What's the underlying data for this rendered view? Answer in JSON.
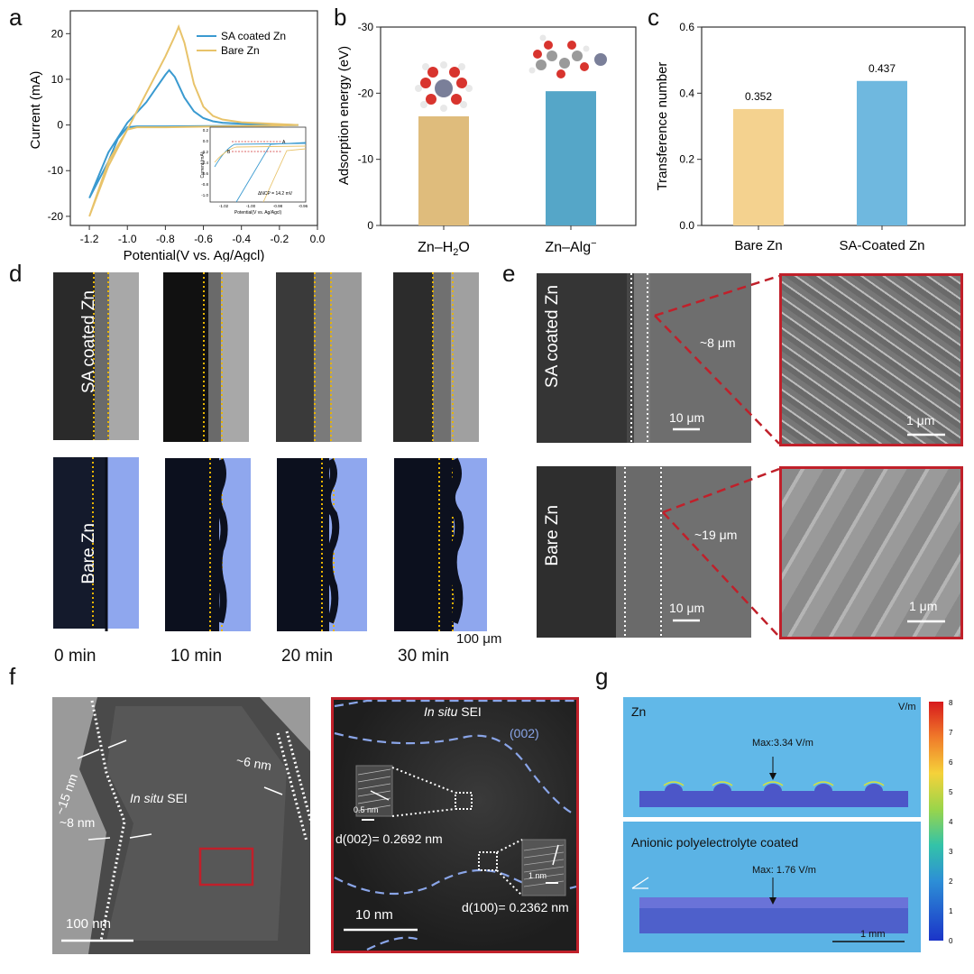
{
  "panels": {
    "a": "a",
    "b": "b",
    "c": "c",
    "d": "d",
    "e": "e",
    "f": "f",
    "g": "g"
  },
  "chart_data": [
    {
      "type": "line",
      "panel": "a",
      "xlabel": "Potential(V vs. Ag/Agcl)",
      "ylabel": "Current (mA)",
      "xlim": [
        -1.3,
        0.0
      ],
      "ylim": [
        -22,
        25
      ],
      "x_ticks": [
        "-1.2",
        "-1.0",
        "-0.8",
        "-0.6",
        "-0.4",
        "-0.2",
        "0.0"
      ],
      "y_ticks": [
        "20",
        "10",
        "0",
        "-10",
        "-20"
      ],
      "legend_position": "top-right",
      "series": [
        {
          "name": "SA coated Zn",
          "color": "#3a9ad0",
          "x": [
            -1.2,
            -1.1,
            -1.0,
            -0.9,
            -0.85,
            -0.8,
            -0.78,
            -0.75,
            -0.7,
            -0.65,
            -0.6,
            -0.55,
            -0.5,
            -0.4,
            -0.2,
            -0.1,
            -0.2,
            -0.5,
            -0.8,
            -0.95,
            -1.0,
            -1.05,
            -1.1,
            -1.2
          ],
          "y": [
            -16,
            -6,
            0.5,
            5,
            8,
            11,
            12,
            10.5,
            6,
            3,
            1.5,
            0.8,
            0.5,
            0.3,
            0.1,
            0,
            -0.1,
            -0.2,
            -0.3,
            -0.3,
            -0.5,
            -3,
            -8,
            -16
          ]
        },
        {
          "name": "Bare Zn",
          "color": "#e8c36a",
          "x": [
            -1.2,
            -1.1,
            -1.0,
            -0.95,
            -0.9,
            -0.85,
            -0.8,
            -0.75,
            -0.73,
            -0.7,
            -0.65,
            -0.6,
            -0.55,
            -0.5,
            -0.4,
            -0.2,
            -0.1,
            -0.2,
            -0.5,
            -0.8,
            -0.95,
            -1.0,
            -1.1,
            -1.2
          ],
          "y": [
            -20,
            -9,
            -1,
            3,
            7,
            11,
            15,
            19.5,
            21.5,
            18,
            9,
            4,
            2,
            1.2,
            0.6,
            0.2,
            0,
            -0.1,
            -0.3,
            -0.5,
            -0.5,
            -1,
            -8,
            -20
          ]
        }
      ],
      "inset": {
        "xlabel": "Potential(V vs. Ag/Agcl)",
        "ylabel": "Current (mA)",
        "x_ticks": [
          "-1.02",
          "-1.00",
          "-0.98",
          "-0.96"
        ],
        "y_ticks": [
          "0.2",
          "0.0",
          "-0.2",
          "-0.4",
          "-0.6",
          "-0.8",
          "-1.0"
        ],
        "annotation": "ΔNCP = 14.2 mV",
        "markers": [
          "B",
          "A"
        ]
      }
    },
    {
      "type": "bar",
      "panel": "b",
      "ylabel": "Adsorption energy (eV)",
      "ylim": [
        0,
        -30
      ],
      "y_ticks": [
        "-30",
        "-20",
        "-10",
        "0"
      ],
      "categories": [
        "Zn–H2O",
        "Zn–Alg⁻"
      ],
      "category_parts": [
        {
          "base": "Zn–H",
          "sub": "2",
          "tail": "O",
          "sup": ""
        },
        {
          "base": "Zn–Alg",
          "sub": "",
          "tail": "",
          "sup": "−"
        }
      ],
      "values": [
        -16.5,
        -20.3
      ],
      "colors": [
        "#dfbc7c",
        "#55a6c8"
      ]
    },
    {
      "type": "bar",
      "panel": "c",
      "ylabel": "Transference number",
      "ylim": [
        0.0,
        0.6
      ],
      "y_ticks": [
        "0.6",
        "0.4",
        "0.2",
        "0.0"
      ],
      "categories": [
        "Bare Zn",
        "SA-Coated Zn"
      ],
      "values": [
        0.352,
        0.437
      ],
      "value_labels": [
        "0.352",
        "0.437"
      ],
      "colors": [
        "#f4d28f",
        "#6fb8df"
      ]
    },
    {
      "type": "heatmap",
      "panel": "g",
      "colorbar_unit": "V/m",
      "colorbar_ticks": [
        "8",
        "7",
        "6",
        "5",
        "4",
        "3",
        "2",
        "1",
        "0"
      ],
      "top_title": "Zn",
      "top_max": "Max:3.34 V/m",
      "bottom_title": "Anionic polyelectrolyte coated",
      "bottom_max": "Max: 1.76 V/m",
      "scale_bar": "1 mm"
    }
  ],
  "panel_d": {
    "row_labels": [
      "SA coated Zn",
      "Bare Zn"
    ],
    "times": [
      "0 min",
      "10 min",
      "20 min",
      "30 min"
    ],
    "scale_bar": "100 μm"
  },
  "panel_e": {
    "row_labels": [
      "SA coated Zn",
      "Bare Zn"
    ],
    "thickness_top": "~8 μm",
    "thickness_bottom": "~19 μm",
    "scale_main": "10 μm",
    "scale_zoom": "1 μm"
  },
  "panel_f": {
    "label_15": "~15 nm",
    "label_6": "~6 nm",
    "label_8": "~8 nm",
    "sei_left_italic": "In situ",
    "sei_left_rest": " SEI",
    "scale_left": "100 nm",
    "sei_right_italic": "In situ",
    "sei_right_rest": " SEI",
    "plane_002": "(002)",
    "d002": "d(002)= 0.2692 nm",
    "d100": "d(100)= 0.2362 nm",
    "inset1_scale": "0.5 nm",
    "inset2_scale": "1 nm",
    "scale_right": "10 nm"
  },
  "colors": {
    "sa_blue": "#3a9ad0",
    "bare_gold": "#e8c36a",
    "zoom_red": "#c0202a",
    "electrolyte_blue": "#8fa7ee"
  }
}
